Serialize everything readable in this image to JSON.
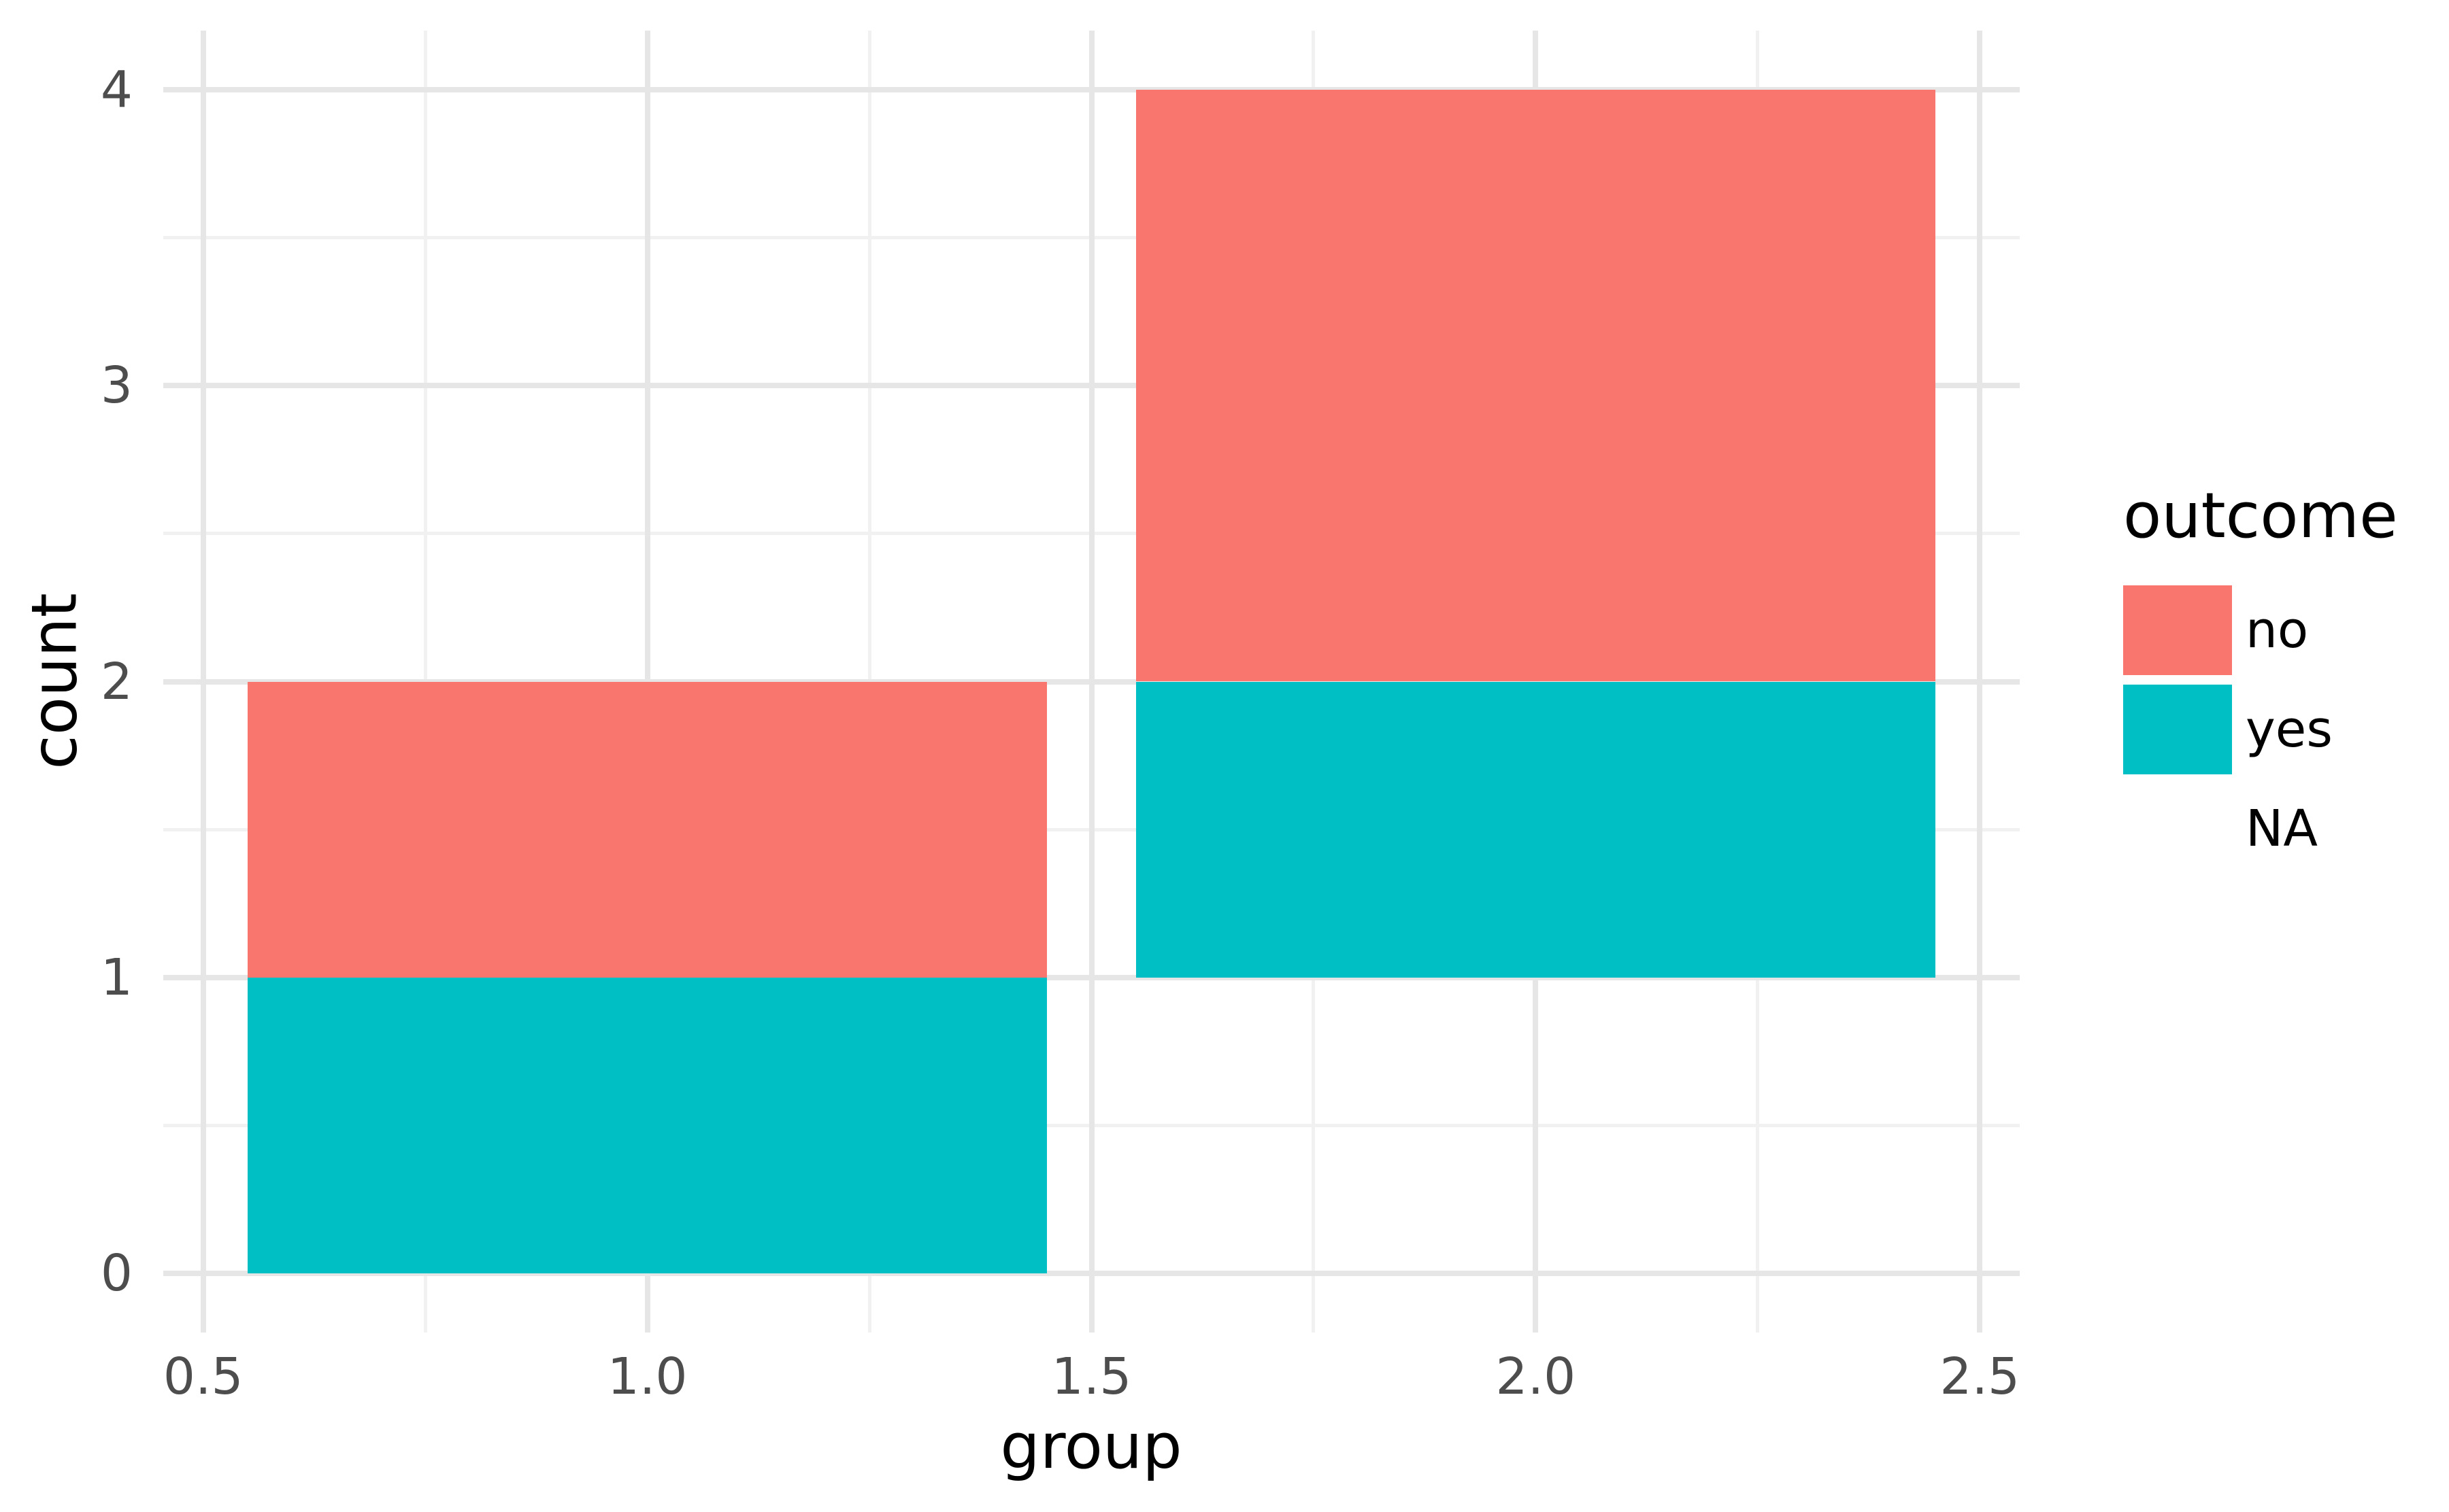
{
  "chart_data": {
    "type": "bar",
    "stacked": true,
    "title": "",
    "xlabel": "group",
    "ylabel": "count",
    "xlim": [
      0.455,
      2.545
    ],
    "ylim": [
      -0.2,
      4.2
    ],
    "x_ticks": [
      0.5,
      1.0,
      1.5,
      2.0,
      2.5
    ],
    "x_tick_labels": [
      "0.5",
      "1.0",
      "1.5",
      "2.0",
      "2.5"
    ],
    "x_minor_ticks": [
      0.75,
      1.25,
      1.75,
      2.25
    ],
    "y_ticks": [
      0,
      1,
      2,
      3,
      4
    ],
    "y_tick_labels": [
      "0",
      "1",
      "2",
      "3",
      "4"
    ],
    "y_minor_ticks": [
      0.5,
      1.5,
      2.5,
      3.5
    ],
    "bar_width": 0.9,
    "grid": {
      "major": true,
      "minor": true
    },
    "legend": {
      "title": "outcome",
      "position": "right",
      "entries": [
        {
          "label": "no",
          "color": "#F8766D"
        },
        {
          "label": "yes",
          "color": "#00BFC4"
        },
        {
          "label": "NA",
          "color": "transparent"
        }
      ]
    },
    "bars": [
      {
        "group": 1,
        "segments": [
          {
            "outcome": "yes",
            "from": 0,
            "to": 1
          },
          {
            "outcome": "no",
            "from": 1,
            "to": 2
          }
        ]
      },
      {
        "group": 2,
        "segments": [
          {
            "outcome": "NA",
            "from": 0,
            "to": 1
          },
          {
            "outcome": "yes",
            "from": 1,
            "to": 2
          },
          {
            "outcome": "no",
            "from": 2,
            "to": 4
          }
        ]
      }
    ]
  },
  "colors": {
    "bar_no": "#F8766D",
    "bar_yes": "#00BFC4",
    "grid_major": "#E6E6E6",
    "grid_minor": "#F1F1F1",
    "axis_text": "#4D4D4D",
    "title_text": "#000000",
    "background": "#FFFFFF"
  }
}
